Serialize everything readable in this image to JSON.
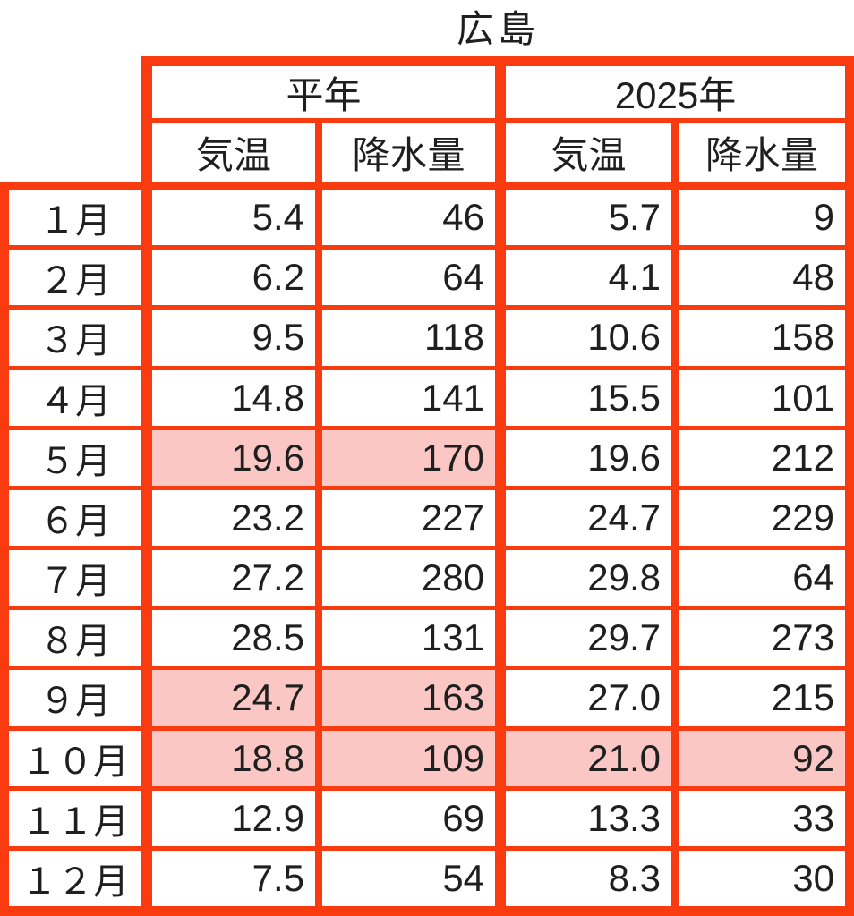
{
  "title": "広島",
  "colors": {
    "border": "#fa3a0f",
    "highlight": "#fac7c5",
    "text": "#1f1f1f",
    "background": "#ffffff"
  },
  "header": {
    "groups": [
      "平年",
      "2025年"
    ],
    "subcolumns": [
      "気温",
      "降水量",
      "気温",
      "降水量"
    ]
  },
  "table": {
    "rows": [
      {
        "cells": [
          "１月",
          "5.4",
          "46",
          "5.7",
          "9"
        ],
        "hl": [
          false,
          false,
          false,
          false,
          false
        ]
      },
      {
        "cells": [
          "２月",
          "6.2",
          "64",
          "4.1",
          "48"
        ],
        "hl": [
          false,
          false,
          false,
          false,
          false
        ]
      },
      {
        "cells": [
          "３月",
          "9.5",
          "118",
          "10.6",
          "158"
        ],
        "hl": [
          false,
          false,
          false,
          false,
          false
        ]
      },
      {
        "cells": [
          "４月",
          "14.8",
          "141",
          "15.5",
          "101"
        ],
        "hl": [
          false,
          false,
          false,
          false,
          false
        ]
      },
      {
        "cells": [
          "５月",
          "19.6",
          "170",
          "19.6",
          "212"
        ],
        "hl": [
          false,
          true,
          true,
          false,
          false
        ]
      },
      {
        "cells": [
          "６月",
          "23.2",
          "227",
          "24.7",
          "229"
        ],
        "hl": [
          false,
          false,
          false,
          false,
          false
        ]
      },
      {
        "cells": [
          "７月",
          "27.2",
          "280",
          "29.8",
          "64"
        ],
        "hl": [
          false,
          false,
          false,
          false,
          false
        ]
      },
      {
        "cells": [
          "８月",
          "28.5",
          "131",
          "29.7",
          "273"
        ],
        "hl": [
          false,
          false,
          false,
          false,
          false
        ]
      },
      {
        "cells": [
          "９月",
          "24.7",
          "163",
          "27.0",
          "215"
        ],
        "hl": [
          false,
          true,
          true,
          false,
          false
        ]
      },
      {
        "cells": [
          "１０月",
          "18.8",
          "109",
          "21.0",
          "92"
        ],
        "hl": [
          false,
          true,
          true,
          true,
          true
        ]
      },
      {
        "cells": [
          "１１月",
          "12.9",
          "69",
          "13.3",
          "33"
        ],
        "hl": [
          false,
          false,
          false,
          false,
          false
        ]
      },
      {
        "cells": [
          "１２月",
          "7.5",
          "54",
          "8.3",
          "30"
        ],
        "hl": [
          false,
          false,
          false,
          false,
          false
        ]
      }
    ]
  },
  "chart_data": {
    "type": "table",
    "title": "広島",
    "column_groups": [
      {
        "label": "平年",
        "columns": [
          "気温",
          "降水量"
        ]
      },
      {
        "label": "2025年",
        "columns": [
          "気温",
          "降水量"
        ]
      }
    ],
    "columns": [
      "月",
      "平年 気温",
      "平年 降水量",
      "2025年 気温",
      "2025年 降水量"
    ],
    "rows": [
      [
        "1月",
        5.4,
        46,
        5.7,
        9
      ],
      [
        "2月",
        6.2,
        64,
        4.1,
        48
      ],
      [
        "3月",
        9.5,
        118,
        10.6,
        158
      ],
      [
        "4月",
        14.8,
        141,
        15.5,
        101
      ],
      [
        "5月",
        19.6,
        170,
        19.6,
        212
      ],
      [
        "6月",
        23.2,
        227,
        24.7,
        229
      ],
      [
        "7月",
        27.2,
        280,
        29.8,
        64
      ],
      [
        "8月",
        28.5,
        131,
        29.7,
        273
      ],
      [
        "9月",
        24.7,
        163,
        27.0,
        215
      ],
      [
        "10月",
        18.8,
        109,
        21.0,
        92
      ],
      [
        "11月",
        12.9,
        69,
        13.3,
        33
      ],
      [
        "12月",
        7.5,
        54,
        8.3,
        30
      ]
    ],
    "highlighted_cells": [
      [
        "5月",
        "平年 気温"
      ],
      [
        "5月",
        "平年 降水量"
      ],
      [
        "9月",
        "平年 気温"
      ],
      [
        "9月",
        "平年 降水量"
      ],
      [
        "10月",
        "平年 気温"
      ],
      [
        "10月",
        "平年 降水量"
      ],
      [
        "10月",
        "2025年 気温"
      ],
      [
        "10月",
        "2025年 降水量"
      ]
    ],
    "highlight_color": "#fac7c5"
  }
}
